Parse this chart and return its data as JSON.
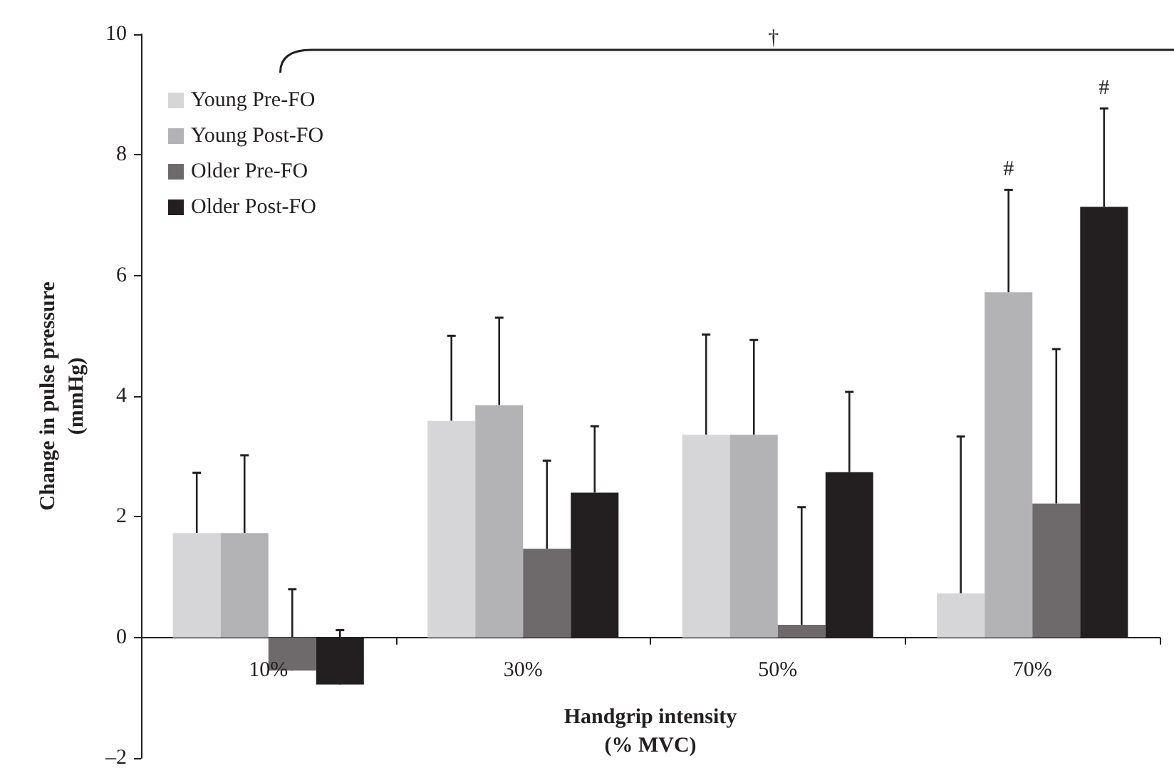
{
  "chart_data": {
    "type": "bar",
    "xlabel": "Handgrip intensity\n(% MVC)",
    "ylabel": "Change in pulse pressure\n(mmHg)",
    "categories": [
      "10%",
      "30%",
      "50%",
      "70%"
    ],
    "series": [
      {
        "name": "Young Pre-FO",
        "color": "#d6d6d8",
        "values": [
          1.73,
          3.59,
          3.36,
          0.73
        ],
        "errors": [
          [
            1.73,
            2.73
          ],
          [
            3.59,
            5.0
          ],
          [
            3.36,
            5.02
          ],
          [
            0.73,
            3.33
          ]
        ]
      },
      {
        "name": "Young Post-FO",
        "color": "#b3b3b6",
        "values": [
          1.73,
          3.85,
          3.36,
          5.72
        ],
        "errors": [
          [
            1.73,
            3.02
          ],
          [
            3.85,
            5.3
          ],
          [
            3.36,
            4.93
          ],
          [
            5.72,
            7.42
          ]
        ]
      },
      {
        "name": "Older Pre-FO",
        "color": "#6e6a6b",
        "values": [
          -0.55,
          1.47,
          0.21,
          2.22
        ],
        "errors": [
          [
            -0.55,
            0.8
          ],
          [
            1.47,
            2.93
          ],
          [
            0.21,
            2.16
          ],
          [
            2.22,
            4.78
          ]
        ]
      },
      {
        "name": "Older Post-FO",
        "color": "#231f20",
        "values": [
          -0.78,
          2.4,
          2.74,
          7.14
        ],
        "errors": [
          [
            -0.78,
            0.12
          ],
          [
            2.4,
            3.5
          ],
          [
            2.74,
            4.07
          ],
          [
            7.14,
            8.77
          ]
        ]
      }
    ],
    "ylim": [
      -2,
      10
    ],
    "yticks": [
      {
        "value": -2,
        "label": "–2"
      },
      0,
      2,
      4,
      6,
      8,
      10
    ],
    "annotations": [
      "†",
      "#",
      "#"
    ],
    "grid": false,
    "legend": "top left"
  }
}
